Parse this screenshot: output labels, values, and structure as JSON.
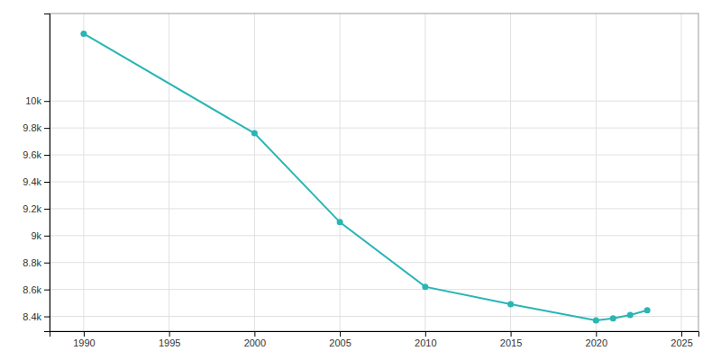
{
  "chart_data": {
    "type": "line",
    "x": [
      1990,
      2000,
      2005,
      2010,
      2015,
      2020,
      2021,
      2022,
      2023
    ],
    "values": [
      10500,
      9760,
      9100,
      8620,
      8490,
      8370,
      8385,
      8410,
      8445
    ],
    "color": "#2ab5b5",
    "marker": "circle",
    "xlim": [
      1988,
      2026
    ],
    "xticks": [
      1990,
      1995,
      2000,
      2005,
      2010,
      2015,
      2020,
      2025
    ],
    "ylim": [
      8290,
      10650
    ],
    "yticks": [
      {
        "value": 8400,
        "label": "8.4k"
      },
      {
        "value": 8600,
        "label": "8.6k"
      },
      {
        "value": 8800,
        "label": "8.8k"
      },
      {
        "value": 9000,
        "label": "9k"
      },
      {
        "value": 9200,
        "label": "9.2k"
      },
      {
        "value": 9400,
        "label": "9.4k"
      },
      {
        "value": 9600,
        "label": "9.6k"
      },
      {
        "value": 9800,
        "label": "9.8k"
      },
      {
        "value": 10000,
        "label": "10k"
      }
    ],
    "grid": true
  }
}
